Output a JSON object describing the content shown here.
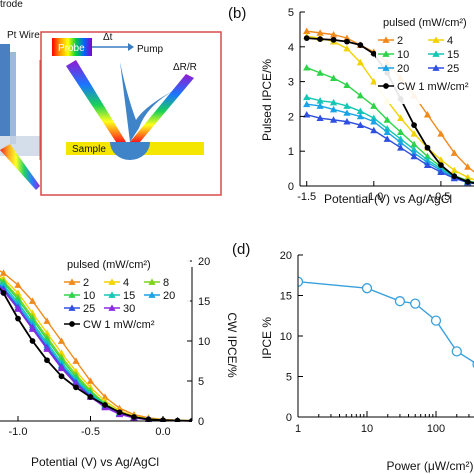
{
  "labels": {
    "top_left_text": "trode",
    "pt_wire": "Pt Wire",
    "probe": "Probe",
    "delta_t": "Δt",
    "pump": "Pump",
    "delta_r": "ΔR/R",
    "sample": "Sample"
  },
  "colors": {
    "p2": "#f08a1c",
    "p4": "#f2d200",
    "p8": "#7ed21a",
    "p10": "#2fd34a",
    "p15": "#14c7b4",
    "p20": "#1aa3e6",
    "p25": "#2f4fe0",
    "p30": "#8a2be2",
    "cw": "#000000",
    "d_line": "#3aa0dc"
  },
  "chart_data": [
    {
      "panel": "b",
      "panel_label": "(b)",
      "type": "line",
      "xlabel": "Potential (V) vs Ag/AgCl",
      "ylabel": "Pulsed IPCE/%",
      "xlim": [
        -1.55,
        0.0
      ],
      "ylim": [
        0,
        5
      ],
      "xticks": [
        "-1.5",
        "-1.0",
        "-0.5"
      ],
      "yticks": [
        "0",
        "1",
        "2",
        "3",
        "4",
        "5"
      ],
      "legend_title": "pulsed (mW/cm²)",
      "x": [
        -1.5,
        -1.4,
        -1.3,
        -1.2,
        -1.1,
        -1.0,
        -0.9,
        -0.8,
        -0.7,
        -0.6,
        -0.5,
        -0.4,
        -0.3,
        -0.2,
        -0.1
      ],
      "series": [
        {
          "name": "2",
          "key": "p2",
          "marker": "triangle",
          "values": [
            4.45,
            4.4,
            4.35,
            4.25,
            4.05,
            3.85,
            3.55,
            3.1,
            2.6,
            2.05,
            1.5,
            0.95,
            0.55,
            0.25,
            0.08
          ]
        },
        {
          "name": "4",
          "key": "p4",
          "marker": "triangle",
          "values": [
            4.3,
            4.25,
            4.15,
            3.95,
            3.55,
            3.0,
            2.45,
            1.95,
            1.5,
            1.1,
            0.75,
            0.45,
            0.25,
            0.1,
            0.03
          ]
        },
        {
          "name": "10",
          "key": "p10",
          "marker": "triangle",
          "values": [
            3.4,
            3.25,
            3.1,
            2.9,
            2.6,
            2.3,
            1.9,
            1.55,
            1.2,
            0.85,
            0.55,
            0.3,
            0.15,
            0.06,
            0.02
          ]
        },
        {
          "name": "15",
          "key": "p15",
          "marker": "triangle",
          "values": [
            2.55,
            2.45,
            2.4,
            2.3,
            2.15,
            1.95,
            1.65,
            1.35,
            1.05,
            0.75,
            0.5,
            0.28,
            0.13,
            0.05,
            0.02
          ]
        },
        {
          "name": "20",
          "key": "p20",
          "marker": "triangle",
          "values": [
            2.35,
            2.3,
            2.2,
            2.1,
            2.0,
            1.85,
            1.55,
            1.25,
            0.95,
            0.68,
            0.45,
            0.25,
            0.12,
            0.05,
            0.02
          ]
        },
        {
          "name": "25",
          "key": "p25",
          "marker": "triangle",
          "values": [
            2.05,
            1.95,
            1.9,
            1.85,
            1.75,
            1.6,
            1.35,
            1.1,
            0.85,
            0.6,
            0.4,
            0.22,
            0.1,
            0.04,
            0.01
          ]
        },
        {
          "name": "CW 1 mW/cm²",
          "key": "cw",
          "marker": "circle",
          "values": [
            4.25,
            4.22,
            4.2,
            4.15,
            4.05,
            3.8,
            3.25,
            2.5,
            1.75,
            1.1,
            0.6,
            0.28,
            0.12,
            0.05,
            0.02
          ]
        }
      ]
    },
    {
      "panel": "c",
      "panel_label": "",
      "type": "line",
      "xlabel": "Potential (V) vs Ag/AgCl",
      "ylabel_right": "CW IPCE/%",
      "xlim": [
        -1.4,
        0.2
      ],
      "ylim": [
        0,
        22
      ],
      "xticks": [
        "-1.0",
        "-0.5",
        "0.0"
      ],
      "yticks_right": [
        "0",
        "5",
        "10",
        "15",
        "20"
      ],
      "legend_title": "pulsed (mW/cm²)",
      "x": [
        -1.4,
        -1.3,
        -1.2,
        -1.1,
        -1.0,
        -0.9,
        -0.8,
        -0.7,
        -0.6,
        -0.5,
        -0.4,
        -0.3,
        -0.2,
        -0.1,
        0.0,
        0.1,
        0.2
      ],
      "series": [
        {
          "name": "2",
          "key": "p2",
          "marker": "triangle",
          "values": [
            20.5,
            20.0,
            19.5,
            18.5,
            17.0,
            15.0,
            12.5,
            10.0,
            7.5,
            5.0,
            3.0,
            1.6,
            0.8,
            0.4,
            0.2,
            0.1,
            0.05
          ]
        },
        {
          "name": "4",
          "key": "p4",
          "marker": "triangle",
          "values": [
            20.0,
            19.5,
            19.0,
            17.8,
            16.0,
            13.5,
            11.0,
            8.5,
            6.2,
            4.2,
            2.5,
            1.3,
            0.6,
            0.3,
            0.15,
            0.08,
            0.04
          ]
        },
        {
          "name": "8",
          "key": "p8",
          "marker": "triangle",
          "values": [
            20.0,
            19.4,
            18.8,
            17.5,
            15.5,
            13.0,
            10.5,
            8.0,
            5.8,
            3.8,
            2.2,
            1.1,
            0.5,
            0.25,
            0.12,
            0.06,
            0.03
          ]
        },
        {
          "name": "10",
          "key": "p10",
          "marker": "triangle",
          "values": [
            19.8,
            19.3,
            18.6,
            17.3,
            15.2,
            12.7,
            10.2,
            7.7,
            5.5,
            3.6,
            2.1,
            1.0,
            0.5,
            0.22,
            0.1,
            0.05,
            0.02
          ]
        },
        {
          "name": "15",
          "key": "p15",
          "marker": "triangle",
          "values": [
            19.6,
            19.1,
            18.4,
            17.0,
            14.8,
            12.3,
            9.8,
            7.3,
            5.2,
            3.4,
            2.0,
            1.0,
            0.45,
            0.2,
            0.1,
            0.05,
            0.02
          ]
        },
        {
          "name": "20",
          "key": "p20",
          "marker": "triangle",
          "values": [
            19.4,
            18.9,
            18.2,
            16.7,
            14.5,
            12.0,
            9.5,
            7.0,
            5.0,
            3.2,
            1.9,
            0.95,
            0.42,
            0.18,
            0.08,
            0.04,
            0.02
          ]
        },
        {
          "name": "25",
          "key": "p25",
          "marker": "triangle",
          "values": [
            19.2,
            18.7,
            18.0,
            16.5,
            14.2,
            11.7,
            9.2,
            6.8,
            4.8,
            3.1,
            1.8,
            0.9,
            0.4,
            0.17,
            0.08,
            0.04,
            0.02
          ]
        },
        {
          "name": "30",
          "key": "p30",
          "marker": "triangle",
          "values": [
            19.0,
            18.5,
            17.8,
            16.3,
            14.0,
            11.5,
            9.0,
            6.6,
            4.6,
            3.0,
            1.7,
            0.85,
            0.38,
            0.16,
            0.07,
            0.03,
            0.01
          ]
        },
        {
          "name": "CW 1 mW/cm²",
          "key": "cw",
          "marker": "circle",
          "values": [
            20.0,
            19.2,
            18.2,
            16.0,
            12.8,
            10.0,
            7.6,
            5.6,
            4.2,
            3.0,
            2.0,
            1.1,
            0.5,
            0.2,
            0.1,
            0.05,
            0.02
          ]
        }
      ]
    },
    {
      "panel": "d",
      "panel_label": "(d)",
      "type": "line",
      "xlabel": "Power (μW/cm²)",
      "ylabel": "IPCE %",
      "xscale": "log",
      "xlim": [
        1,
        400
      ],
      "ylim": [
        0,
        20
      ],
      "xticks": [
        "1",
        "10",
        "100"
      ],
      "yticks": [
        "0",
        "5",
        "10",
        "15",
        "20"
      ],
      "x": [
        1,
        10,
        30,
        50,
        100,
        200,
        400
      ],
      "series": [
        {
          "name": "",
          "key": "d_line",
          "marker": "open-circle",
          "values": [
            16.7,
            15.9,
            14.3,
            14.0,
            11.9,
            8.1,
            6.5
          ]
        }
      ]
    }
  ]
}
